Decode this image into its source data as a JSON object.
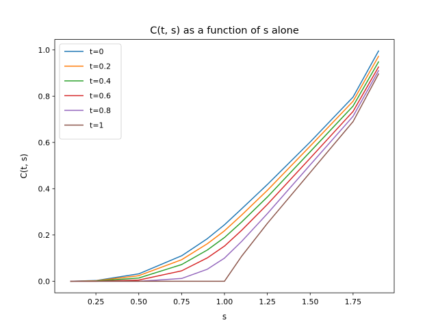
{
  "chart_data": {
    "type": "line",
    "title": "C(t, s) as a function of s alone",
    "xlabel": "s",
    "ylabel": "C(t, s)",
    "xlim": [
      0.01,
      1.99
    ],
    "ylim": [
      -0.05,
      1.045
    ],
    "xticks": [
      0.25,
      0.5,
      0.75,
      1.0,
      1.25,
      1.5,
      1.75
    ],
    "xtick_labels": [
      "0.25",
      "0.50",
      "0.75",
      "1.00",
      "1.25",
      "1.50",
      "1.75"
    ],
    "yticks": [
      0.0,
      0.2,
      0.4,
      0.6,
      0.8,
      1.0
    ],
    "ytick_labels": [
      "0.0",
      "0.2",
      "0.4",
      "0.6",
      "0.8",
      "1.0"
    ],
    "grid": false,
    "legend_position": "top-left",
    "x": [
      0.1,
      0.25,
      0.5,
      0.75,
      0.9,
      1.0,
      1.1,
      1.25,
      1.5,
      1.75,
      1.9
    ],
    "series": [
      {
        "name": "t=0",
        "color": "#1f77b4",
        "values": [
          0.0,
          0.003,
          0.032,
          0.11,
          0.184,
          0.244,
          0.313,
          0.418,
          0.602,
          0.796,
          0.997
        ]
      },
      {
        "name": "t=0.2",
        "color": "#ff7f0e",
        "values": [
          0.0,
          0.002,
          0.024,
          0.093,
          0.162,
          0.218,
          0.286,
          0.393,
          0.584,
          0.778,
          0.974
        ]
      },
      {
        "name": "t=0.4",
        "color": "#2ca02c",
        "values": [
          0.0,
          0.001,
          0.014,
          0.072,
          0.135,
          0.189,
          0.256,
          0.364,
          0.56,
          0.757,
          0.95
        ]
      },
      {
        "name": "t=0.6",
        "color": "#d62728",
        "values": [
          0.0,
          0.0,
          0.005,
          0.045,
          0.101,
          0.152,
          0.22,
          0.332,
          0.532,
          0.734,
          0.928
        ]
      },
      {
        "name": "t=0.8",
        "color": "#9467bd",
        "values": [
          0.0,
          0.0,
          0.0,
          0.012,
          0.052,
          0.1,
          0.172,
          0.292,
          0.503,
          0.713,
          0.912
        ]
      },
      {
        "name": "t=1",
        "color": "#8c564b",
        "values": [
          0.0,
          0.0,
          0.0,
          0.0,
          0.0,
          0.0,
          0.108,
          0.25,
          0.47,
          0.69,
          0.898
        ]
      }
    ]
  }
}
